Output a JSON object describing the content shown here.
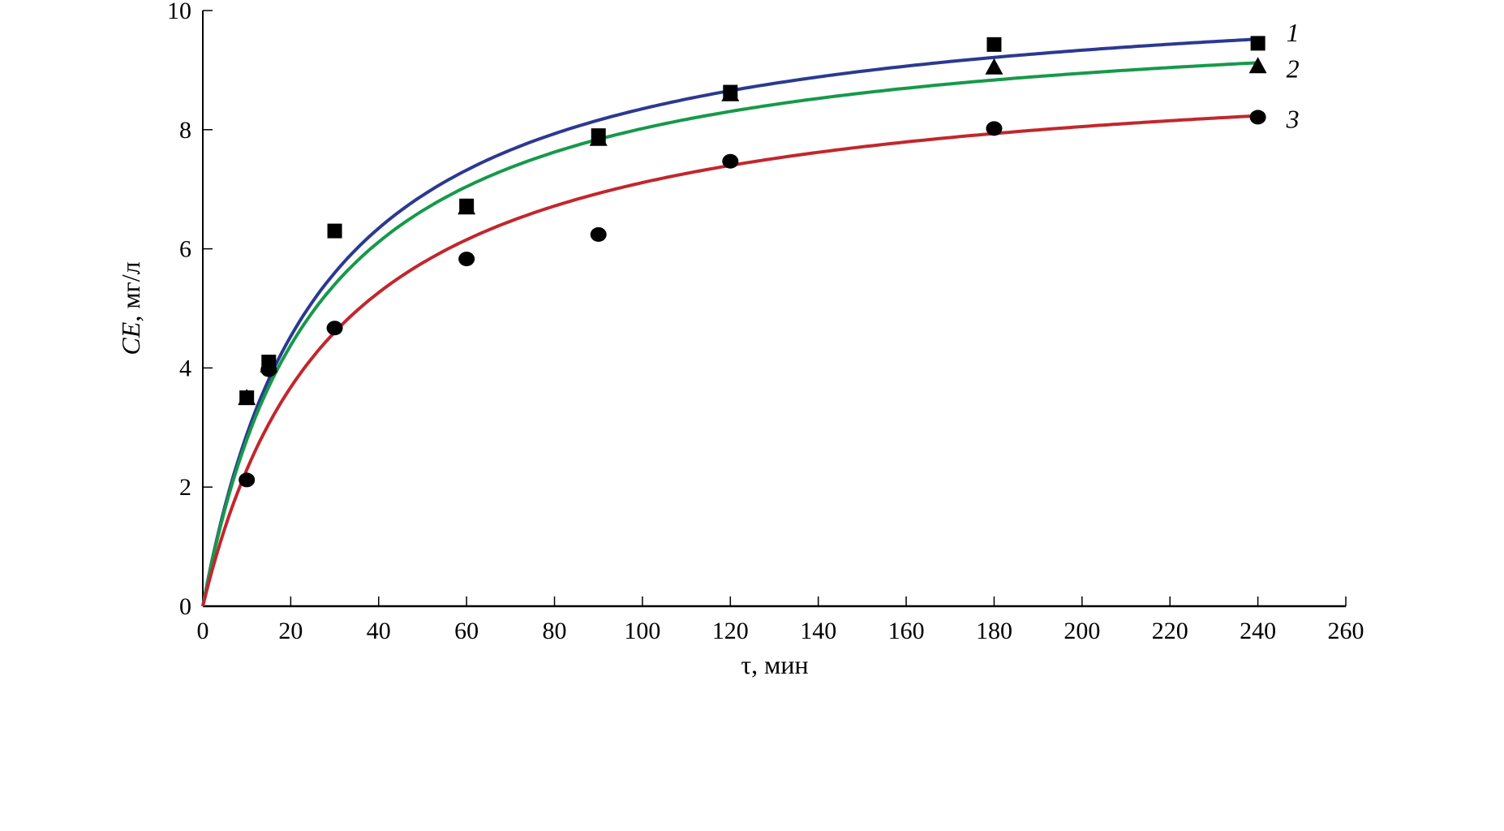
{
  "chart_data": {
    "type": "scatter",
    "title": "",
    "xlabel": "τ, мин",
    "ylabel_italic": "CE",
    "ylabel_rest": ", мг/л",
    "xlim": [
      0,
      260
    ],
    "ylim": [
      0,
      10
    ],
    "xticks": [
      0,
      20,
      40,
      60,
      80,
      100,
      120,
      140,
      160,
      180,
      200,
      220,
      240,
      260
    ],
    "yticks": [
      0,
      2,
      4,
      6,
      8,
      10
    ],
    "grid": false,
    "series": [
      {
        "name": "1",
        "marker": "square",
        "color": "#2b3990",
        "x": [
          10,
          15,
          30,
          60,
          90,
          120,
          180,
          240
        ],
        "y": [
          3.5,
          4.1,
          6.3,
          6.72,
          7.9,
          8.63,
          9.43,
          9.45
        ],
        "fit": {
          "model": "a*t/(b+t)",
          "a": 10.58,
          "b": 26.7
        }
      },
      {
        "name": "2",
        "marker": "triangle",
        "color": "#16994a",
        "x": [
          10,
          15,
          60,
          90,
          120,
          180,
          240
        ],
        "y": [
          3.5,
          4.05,
          6.7,
          7.85,
          8.6,
          9.05,
          9.07
        ],
        "fit": {
          "model": "a*t/(b+t)",
          "a": 10.12,
          "b": 26.2
        }
      },
      {
        "name": "3",
        "marker": "circle",
        "color": "#c1272d",
        "x": [
          10,
          15,
          30,
          60,
          90,
          120,
          180,
          240
        ],
        "y": [
          2.12,
          3.97,
          4.67,
          5.83,
          6.24,
          7.47,
          8.02,
          8.21
        ],
        "fit": {
          "model": "a*t/(b+t)",
          "a": 9.28,
          "b": 30.5
        }
      }
    ]
  }
}
